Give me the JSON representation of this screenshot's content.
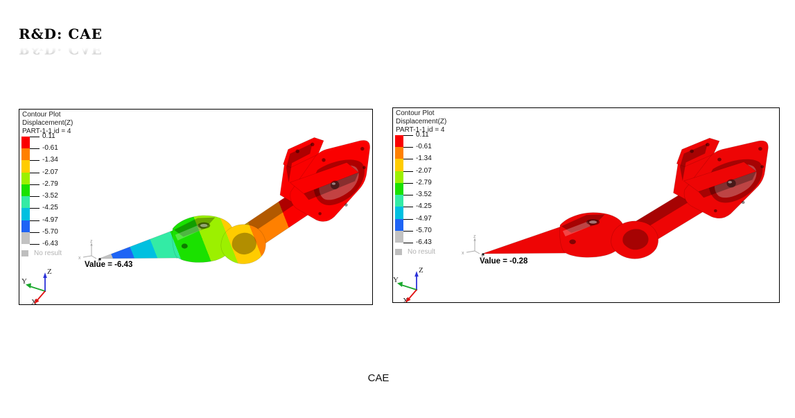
{
  "slide": {
    "title": "R&D: CAE",
    "caption": "CAE"
  },
  "legend": {
    "lines": [
      "Contour Plot",
      "Displacement(Z)",
      "PART-1-1 id = 4"
    ],
    "no_result_label": "No result",
    "no_result_swatch_color": "#bebebe"
  },
  "colorbar": {
    "tick_values": [
      "0.11",
      "-0.61",
      "-1.34",
      "-2.07",
      "-2.79",
      "-3.52",
      "-4.25",
      "-4.97",
      "-5.70",
      "-6.43"
    ],
    "band_colors": [
      "#fa0000",
      "#ff8000",
      "#ffcc00",
      "#9cf000",
      "#1ae100",
      "#33eba5",
      "#00c0e0",
      "#1e64f5",
      "#c2c2c2"
    ]
  },
  "plots": [
    {
      "value_label": "Value = -6.43"
    },
    {
      "value_label": "Value = -0.28"
    }
  ],
  "triad": {
    "x": "X",
    "y": "Y",
    "z": "Z"
  },
  "mini_triad": {
    "x": "x",
    "y": "y",
    "z": "z"
  },
  "model_bands": [
    {
      "color": "#c2c2c2",
      "to": 0.045
    },
    {
      "color": "#1e64f5",
      "to": 0.115
    },
    {
      "color": "#00c0e0",
      "to": 0.19
    },
    {
      "color": "#33eba5",
      "to": 0.265
    },
    {
      "color": "#1ae100",
      "to": 0.36
    },
    {
      "color": "#9cf000",
      "to": 0.445
    },
    {
      "color": "#ffcc00",
      "to": 0.53
    },
    {
      "color": "#ff8000",
      "to": 0.655
    },
    {
      "color": "#fa0000",
      "to": 1
    }
  ],
  "model_solid_color": "#ee0505"
}
